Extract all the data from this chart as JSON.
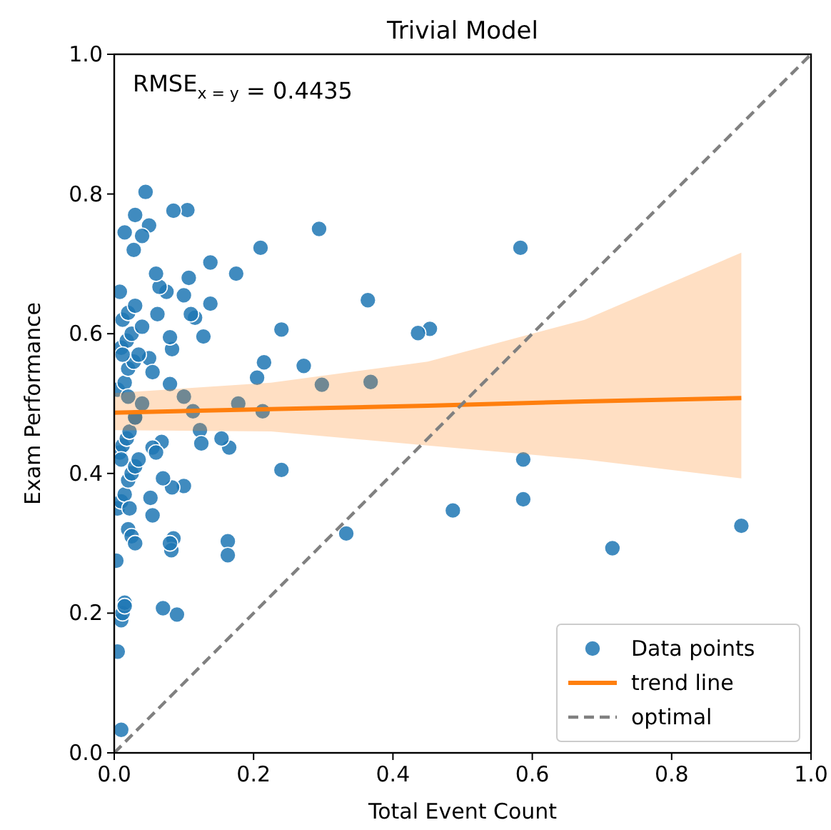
{
  "chart_data": {
    "type": "scatter",
    "title": "Trivial Model",
    "xlabel": "Total Event Count",
    "ylabel": "Exam Performance",
    "annotations": [
      "RMSE$_{x = y}$ = 0.4435"
    ],
    "xlim": [
      0,
      1
    ],
    "ylim": [
      0,
      1
    ],
    "xticks": [
      {
        "value": 0,
        "label": "0.0"
      },
      0.2,
      0.4,
      0.6,
      0.8,
      {
        "value": 1,
        "label": "1.0"
      }
    ],
    "yticks": [
      {
        "value": 0,
        "label": "0.0"
      },
      0.2,
      0.4,
      0.6,
      0.8,
      {
        "value": 1,
        "label": "1.0"
      }
    ],
    "grid": false,
    "legend": "bottom right",
    "series": [
      {
        "name": "Data points",
        "marker": "circle",
        "color": "#1f77b4",
        "x": [
          0.9,
          0.715,
          0.587,
          0.587,
          0.583,
          0.486,
          0.453,
          0.436,
          0.364,
          0.368,
          0.298,
          0.333,
          0.294,
          0.272,
          0.24,
          0.24,
          0.215,
          0.213,
          0.21,
          0.205,
          0.178,
          0.175,
          0.165,
          0.163,
          0.163,
          0.154,
          0.138,
          0.138,
          0.128,
          0.123,
          0.125,
          0.116,
          0.113,
          0.11,
          0.105,
          0.107,
          0.1,
          0.1,
          0.1,
          0.09,
          0.085,
          0.083,
          0.083,
          0.085,
          0.082,
          0.08,
          0.08,
          0.08,
          0.075,
          0.07,
          0.07,
          0.068,
          0.065,
          0.062,
          0.06,
          0.05,
          0.045,
          0.04,
          0.05,
          0.055,
          0.052,
          0.055,
          0.055,
          0.06,
          0.03,
          0.015,
          0.028,
          0.01,
          0.005,
          0.01,
          0.012,
          0.015,
          0.003,
          0.02,
          0.025,
          0.03,
          0.005,
          0.01,
          0.015,
          0.02,
          0.025,
          0.03,
          0.035,
          0.008,
          0.012,
          0.018,
          0.022,
          0.03,
          0.04,
          0.005,
          0.015,
          0.02,
          0.028,
          0.035,
          0.01,
          0.018,
          0.025,
          0.04,
          0.012,
          0.02,
          0.03,
          0.008,
          0.015,
          0.022,
          0.03,
          0.01,
          0.02,
          0.012
        ],
        "values": [
          0.325,
          0.293,
          0.42,
          0.363,
          0.723,
          0.347,
          0.607,
          0.601,
          0.648,
          0.531,
          0.527,
          0.314,
          0.75,
          0.554,
          0.606,
          0.405,
          0.559,
          0.489,
          0.723,
          0.537,
          0.5,
          0.686,
          0.437,
          0.303,
          0.283,
          0.45,
          0.702,
          0.643,
          0.596,
          0.462,
          0.443,
          0.623,
          0.489,
          0.628,
          0.777,
          0.68,
          0.655,
          0.51,
          0.382,
          0.198,
          0.776,
          0.578,
          0.38,
          0.307,
          0.29,
          0.3,
          0.528,
          0.595,
          0.66,
          0.207,
          0.393,
          0.445,
          0.667,
          0.628,
          0.686,
          0.755,
          0.803,
          0.74,
          0.565,
          0.545,
          0.365,
          0.34,
          0.437,
          0.43,
          0.77,
          0.745,
          0.72,
          0.033,
          0.145,
          0.19,
          0.2,
          0.215,
          0.275,
          0.32,
          0.31,
          0.3,
          0.35,
          0.36,
          0.37,
          0.39,
          0.4,
          0.41,
          0.42,
          0.43,
          0.44,
          0.45,
          0.46,
          0.48,
          0.5,
          0.52,
          0.53,
          0.55,
          0.56,
          0.57,
          0.58,
          0.59,
          0.6,
          0.61,
          0.62,
          0.63,
          0.64,
          0.66,
          0.21,
          0.35,
          0.48,
          0.42,
          0.51,
          0.57
        ]
      },
      {
        "name": "trend line",
        "type": "line",
        "marker": "none",
        "color": "#ff7f0e",
        "x": [
          0,
          0.225,
          0.45,
          0.675,
          0.9
        ],
        "values": [
          0.487,
          0.492,
          0.497,
          0.503,
          0.508
        ],
        "lower": [
          0.462,
          0.46,
          0.44,
          0.42,
          0.393
        ],
        "upper": [
          0.515,
          0.53,
          0.56,
          0.62,
          0.716
        ]
      },
      {
        "name": "optimal",
        "type": "line",
        "marker": "none",
        "color": "#808080",
        "line_style": "dashed",
        "x": [
          0,
          1
        ],
        "values": [
          0,
          1
        ]
      }
    ]
  }
}
